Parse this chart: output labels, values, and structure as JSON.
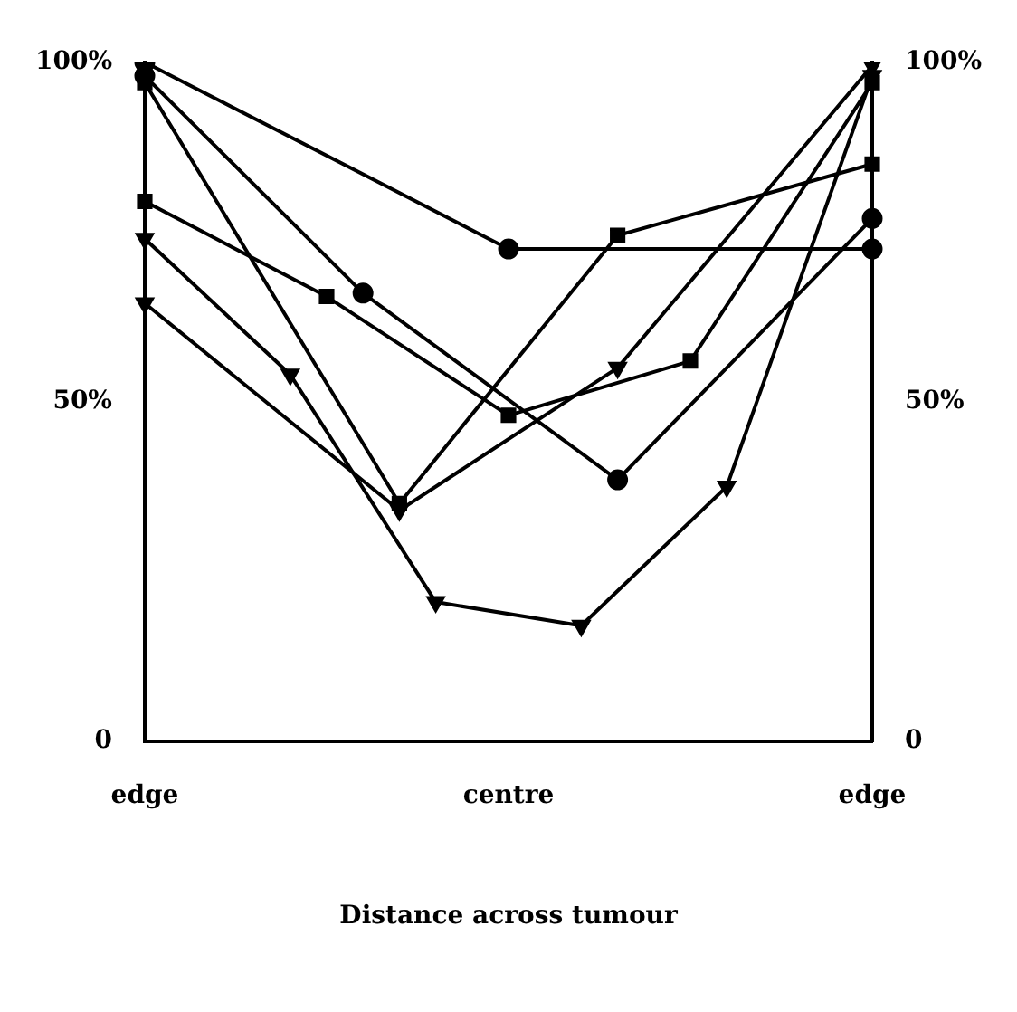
{
  "chart_data": {
    "type": "line",
    "xlabel": "Distance across tumour",
    "categories": [
      "edge",
      null,
      null,
      null,
      null,
      null,
      null,
      null,
      null,
      null,
      "centre",
      null,
      null,
      null,
      null,
      null,
      null,
      null,
      null,
      null,
      "edge"
    ],
    "ylim": [
      0,
      100
    ],
    "yticks": [
      {
        "value": 0,
        "label": "0"
      },
      {
        "value": 50,
        "label": "50%"
      },
      {
        "value": 100,
        "label": "100%"
      }
    ],
    "y2lim": [
      0,
      100
    ],
    "y2ticks": [
      {
        "value": 0,
        "label": "0"
      },
      {
        "value": 50,
        "label": "50%"
      },
      {
        "value": 100,
        "label": "100%"
      }
    ],
    "grid": false,
    "legend": false,
    "line_style": "solid",
    "series": [
      {
        "color": "#000000",
        "marker": "circle",
        "values": [
          100,
          null,
          null,
          null,
          null,
          null,
          null,
          null,
          null,
          null,
          72.5,
          null,
          null,
          null,
          null,
          null,
          null,
          null,
          null,
          null,
          72.5
        ]
      },
      {
        "color": "#000000",
        "marker": "circle",
        "values": [
          98,
          null,
          null,
          null,
          null,
          null,
          66,
          null,
          null,
          null,
          null,
          null,
          null,
          38.5,
          null,
          null,
          null,
          null,
          null,
          null,
          77
        ]
      },
      {
        "color": "#000000",
        "marker": "square",
        "values": [
          97,
          null,
          null,
          null,
          null,
          null,
          null,
          35,
          null,
          null,
          null,
          null,
          null,
          74.5,
          null,
          null,
          null,
          null,
          null,
          null,
          85
        ]
      },
      {
        "color": "#000000",
        "marker": "square",
        "values": [
          79.5,
          null,
          null,
          null,
          null,
          65.5,
          null,
          null,
          null,
          null,
          48,
          null,
          null,
          null,
          null,
          56,
          null,
          null,
          null,
          null,
          97
        ]
      },
      {
        "color": "#000000",
        "marker": "triangle",
        "values": [
          64.5,
          null,
          null,
          null,
          null,
          null,
          null,
          34,
          null,
          null,
          null,
          null,
          null,
          55,
          null,
          null,
          null,
          null,
          null,
          null,
          99.5
        ]
      },
      {
        "color": "#000000",
        "marker": "triangle",
        "values": [
          74,
          null,
          null,
          null,
          54,
          null,
          null,
          null,
          20.5,
          null,
          null,
          null,
          17,
          null,
          null,
          null,
          37.5,
          null,
          null,
          null,
          98
        ]
      }
    ]
  }
}
